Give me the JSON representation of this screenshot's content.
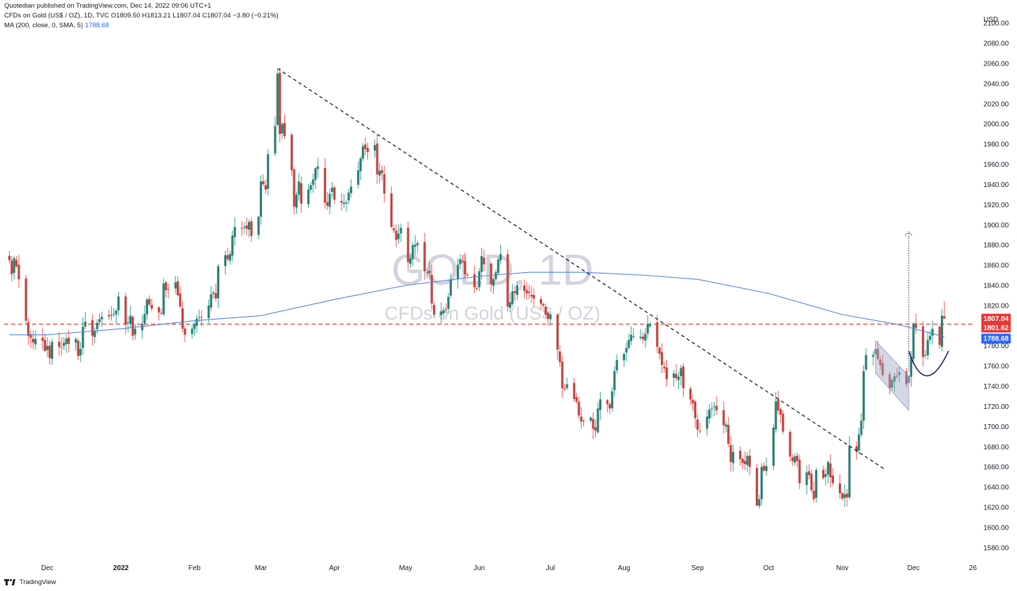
{
  "header": {
    "line1": "Quotedian published on TradingView.com, Dec 14, 2022 09:06 UTC+1",
    "line2": "CFDs on Gold (US$ / OZ), 1D, TVC  O1809.50  H1813.21  L1807.04  C1807.04  −3.80 (−0.21%)",
    "line3_label": "MA (200, close, 0, SMA, 5)",
    "line3_value": "1788.68"
  },
  "footer": {
    "brand": "TradingView"
  },
  "watermark": {
    "symbol": "GOLD, 1D",
    "description": "CFDs on Gold (US$ / OZ)"
  },
  "colors": {
    "up": "#26a69a",
    "up_body": "#1e6f65",
    "down": "#ef5350",
    "down_body": "#b43c3a",
    "candle_up": "#2d7f74",
    "candle_down": "#c0433f",
    "wick": "#4d4d4d",
    "ma": "#4f82e0",
    "price_line": "#e53935",
    "trend": "#131722",
    "channel": "#9fa6c7"
  },
  "chart_data": {
    "type": "candlestick",
    "title": "CFDs on Gold (US$ / OZ), 1D",
    "currency": "USD",
    "ylim": [
      1573,
      2116
    ],
    "y_ticks": [
      1580,
      1600,
      1620,
      1640,
      1660,
      1680,
      1700,
      1720,
      1740,
      1760,
      1780,
      1800,
      1820,
      1840,
      1860,
      1880,
      1900,
      1920,
      1940,
      1960,
      1980,
      2000,
      2020,
      2040,
      2060,
      2080,
      2100
    ],
    "x_ticks": [
      {
        "label": "Dec",
        "date": "2021-12-01"
      },
      {
        "label": "2022",
        "date": "2022-01-01"
      },
      {
        "label": "Feb",
        "date": "2022-02-01"
      },
      {
        "label": "Mar",
        "date": "2022-03-01"
      },
      {
        "label": "Apr",
        "date": "2022-04-01"
      },
      {
        "label": "May",
        "date": "2022-05-01"
      },
      {
        "label": "Jun",
        "date": "2022-06-01"
      },
      {
        "label": "Jul",
        "date": "2022-07-01"
      },
      {
        "label": "Aug",
        "date": "2022-08-01"
      },
      {
        "label": "Sep",
        "date": "2022-09-01"
      },
      {
        "label": "Oct",
        "date": "2022-10-01"
      },
      {
        "label": "Nov",
        "date": "2022-11-01"
      },
      {
        "label": "Dec",
        "date": "2022-12-01"
      },
      {
        "label": "26",
        "date": "2022-12-26"
      }
    ],
    "close_path": [
      [
        "2021-11-15",
        1865
      ],
      [
        "2021-11-16",
        1851
      ],
      [
        "2021-11-17",
        1867
      ],
      [
        "2021-11-18",
        1859
      ],
      [
        "2021-11-19",
        1846
      ],
      [
        "2021-11-22",
        1805
      ],
      [
        "2021-11-23",
        1790
      ],
      [
        "2021-11-24",
        1788
      ],
      [
        "2021-11-26",
        1787
      ],
      [
        "2021-11-29",
        1785
      ],
      [
        "2021-11-30",
        1775
      ],
      [
        "2021-12-01",
        1780
      ],
      [
        "2021-12-02",
        1768
      ],
      [
        "2021-12-03",
        1784
      ],
      [
        "2021-12-06",
        1779
      ],
      [
        "2021-12-08",
        1783
      ],
      [
        "2021-12-10",
        1782
      ],
      [
        "2021-12-13",
        1787
      ],
      [
        "2021-12-14",
        1770
      ],
      [
        "2021-12-15",
        1777
      ],
      [
        "2021-12-16",
        1799
      ],
      [
        "2021-12-17",
        1804
      ],
      [
        "2021-12-20",
        1790
      ],
      [
        "2021-12-22",
        1803
      ],
      [
        "2021-12-24",
        1809
      ],
      [
        "2021-12-28",
        1810
      ],
      [
        "2021-12-30",
        1815
      ],
      [
        "2021-12-31",
        1829
      ],
      [
        "2022-01-03",
        1801
      ],
      [
        "2022-01-05",
        1810
      ],
      [
        "2022-01-06",
        1790
      ],
      [
        "2022-01-07",
        1797
      ],
      [
        "2022-01-10",
        1802
      ],
      [
        "2022-01-12",
        1826
      ],
      [
        "2022-01-14",
        1817
      ],
      [
        "2022-01-18",
        1812
      ],
      [
        "2022-01-19",
        1842
      ],
      [
        "2022-01-21",
        1836
      ],
      [
        "2022-01-24",
        1843
      ],
      [
        "2022-01-26",
        1819
      ],
      [
        "2022-01-27",
        1797
      ],
      [
        "2022-01-28",
        1791
      ],
      [
        "2022-01-31",
        1797
      ],
      [
        "2022-02-02",
        1807
      ],
      [
        "2022-02-04",
        1808
      ],
      [
        "2022-02-07",
        1820
      ],
      [
        "2022-02-09",
        1833
      ],
      [
        "2022-02-10",
        1827
      ],
      [
        "2022-02-11",
        1859
      ],
      [
        "2022-02-14",
        1870
      ],
      [
        "2022-02-16",
        1871
      ],
      [
        "2022-02-18",
        1898
      ],
      [
        "2022-02-22",
        1898
      ],
      [
        "2022-02-24",
        1903
      ],
      [
        "2022-02-25",
        1889
      ],
      [
        "2022-02-28",
        1908
      ],
      [
        "2022-03-01",
        1943
      ],
      [
        "2022-03-03",
        1935
      ],
      [
        "2022-03-04",
        1970
      ],
      [
        "2022-03-07",
        1998
      ],
      [
        "2022-03-08",
        2050
      ],
      [
        "2022-03-09",
        1990
      ],
      [
        "2022-03-10",
        2000
      ],
      [
        "2022-03-11",
        1988
      ],
      [
        "2022-03-14",
        1954
      ],
      [
        "2022-03-15",
        1918
      ],
      [
        "2022-03-17",
        1943
      ],
      [
        "2022-03-18",
        1921
      ],
      [
        "2022-03-21",
        1935
      ],
      [
        "2022-03-23",
        1945
      ],
      [
        "2022-03-25",
        1958
      ],
      [
        "2022-03-28",
        1922
      ],
      [
        "2022-03-29",
        1919
      ],
      [
        "2022-03-31",
        1937
      ],
      [
        "2022-04-01",
        1925
      ],
      [
        "2022-04-05",
        1922
      ],
      [
        "2022-04-07",
        1932
      ],
      [
        "2022-04-11",
        1954
      ],
      [
        "2022-04-12",
        1966
      ],
      [
        "2022-04-13",
        1978
      ],
      [
        "2022-04-14",
        1975
      ],
      [
        "2022-04-18",
        1979
      ],
      [
        "2022-04-19",
        1950
      ],
      [
        "2022-04-21",
        1951
      ],
      [
        "2022-04-22",
        1931
      ],
      [
        "2022-04-25",
        1898
      ],
      [
        "2022-04-27",
        1885
      ],
      [
        "2022-04-29",
        1897
      ],
      [
        "2022-05-02",
        1863
      ],
      [
        "2022-05-04",
        1880
      ],
      [
        "2022-05-06",
        1882
      ],
      [
        "2022-05-09",
        1854
      ],
      [
        "2022-05-11",
        1852
      ],
      [
        "2022-05-12",
        1822
      ],
      [
        "2022-05-13",
        1811
      ],
      [
        "2022-05-16",
        1814
      ],
      [
        "2022-05-18",
        1816
      ],
      [
        "2022-05-20",
        1846
      ],
      [
        "2022-05-24",
        1866
      ],
      [
        "2022-05-26",
        1851
      ],
      [
        "2022-05-31",
        1837
      ],
      [
        "2022-06-02",
        1869
      ],
      [
        "2022-06-06",
        1841
      ],
      [
        "2022-06-08",
        1853
      ],
      [
        "2022-06-10",
        1871
      ],
      [
        "2022-06-13",
        1819
      ],
      [
        "2022-06-15",
        1834
      ],
      [
        "2022-06-17",
        1840
      ],
      [
        "2022-06-21",
        1832
      ],
      [
        "2022-06-24",
        1827
      ],
      [
        "2022-06-28",
        1820
      ],
      [
        "2022-06-30",
        1807
      ],
      [
        "2022-07-01",
        1811
      ],
      [
        "2022-07-05",
        1764
      ],
      [
        "2022-07-06",
        1738
      ],
      [
        "2022-07-08",
        1742
      ],
      [
        "2022-07-12",
        1725
      ],
      [
        "2022-07-14",
        1705
      ],
      [
        "2022-07-18",
        1709
      ],
      [
        "2022-07-20",
        1696
      ],
      [
        "2022-07-21",
        1718
      ],
      [
        "2022-07-22",
        1727
      ],
      [
        "2022-07-26",
        1718
      ],
      [
        "2022-07-27",
        1735
      ],
      [
        "2022-07-28",
        1755
      ],
      [
        "2022-07-29",
        1766
      ],
      [
        "2022-08-01",
        1772
      ],
      [
        "2022-08-04",
        1791
      ],
      [
        "2022-08-08",
        1789
      ],
      [
        "2022-08-10",
        1792
      ],
      [
        "2022-08-12",
        1802
      ],
      [
        "2022-08-15",
        1779
      ],
      [
        "2022-08-17",
        1761
      ],
      [
        "2022-08-19",
        1747
      ],
      [
        "2022-08-23",
        1748
      ],
      [
        "2022-08-25",
        1758
      ],
      [
        "2022-08-26",
        1738
      ],
      [
        "2022-08-30",
        1723
      ],
      [
        "2022-09-01",
        1697
      ],
      [
        "2022-09-05",
        1710
      ],
      [
        "2022-09-07",
        1718
      ],
      [
        "2022-09-09",
        1716
      ],
      [
        "2022-09-13",
        1702
      ],
      [
        "2022-09-15",
        1665
      ],
      [
        "2022-09-16",
        1675
      ],
      [
        "2022-09-20",
        1664
      ],
      [
        "2022-09-22",
        1671
      ],
      [
        "2022-09-26",
        1622
      ],
      [
        "2022-09-27",
        1628
      ],
      [
        "2022-09-28",
        1660
      ],
      [
        "2022-09-30",
        1661
      ],
      [
        "2022-10-03",
        1699
      ],
      [
        "2022-10-04",
        1725
      ],
      [
        "2022-10-05",
        1716
      ],
      [
        "2022-10-06",
        1712
      ],
      [
        "2022-10-07",
        1695
      ],
      [
        "2022-10-11",
        1666
      ],
      [
        "2022-10-13",
        1666
      ],
      [
        "2022-10-14",
        1644
      ],
      [
        "2022-10-18",
        1652
      ],
      [
        "2022-10-20",
        1628
      ],
      [
        "2022-10-21",
        1657
      ],
      [
        "2022-10-24",
        1649
      ],
      [
        "2022-10-26",
        1665
      ],
      [
        "2022-10-28",
        1644
      ],
      [
        "2022-10-31",
        1634
      ],
      [
        "2022-11-02",
        1633
      ],
      [
        "2022-11-03",
        1630
      ],
      [
        "2022-11-04",
        1681
      ],
      [
        "2022-11-07",
        1675
      ],
      [
        "2022-11-09",
        1706
      ],
      [
        "2022-11-10",
        1755
      ],
      [
        "2022-11-11",
        1771
      ],
      [
        "2022-11-14",
        1771
      ],
      [
        "2022-11-15",
        1777
      ],
      [
        "2022-11-17",
        1761
      ],
      [
        "2022-11-18",
        1751
      ],
      [
        "2022-11-21",
        1738
      ],
      [
        "2022-11-23",
        1750
      ],
      [
        "2022-11-25",
        1754
      ],
      [
        "2022-11-28",
        1742
      ],
      [
        "2022-11-29",
        1750
      ],
      [
        "2022-11-30",
        1769
      ],
      [
        "2022-12-01",
        1802
      ],
      [
        "2022-12-02",
        1798
      ],
      [
        "2022-12-05",
        1769
      ],
      [
        "2022-12-06",
        1771
      ],
      [
        "2022-12-07",
        1786
      ],
      [
        "2022-12-08",
        1790
      ],
      [
        "2022-12-09",
        1797
      ],
      [
        "2022-12-12",
        1781
      ],
      [
        "2022-12-13",
        1810
      ],
      [
        "2022-12-14",
        1807
      ]
    ],
    "ma200_path": [
      [
        "2021-11-15",
        1791
      ],
      [
        "2021-12-01",
        1791
      ],
      [
        "2022-01-01",
        1797
      ],
      [
        "2022-02-01",
        1805
      ],
      [
        "2022-03-01",
        1810
      ],
      [
        "2022-04-01",
        1826
      ],
      [
        "2022-05-01",
        1840
      ],
      [
        "2022-06-01",
        1849
      ],
      [
        "2022-06-22",
        1853
      ],
      [
        "2022-07-15",
        1853
      ],
      [
        "2022-08-10",
        1850
      ],
      [
        "2022-09-01",
        1846
      ],
      [
        "2022-10-01",
        1832
      ],
      [
        "2022-11-01",
        1811
      ],
      [
        "2022-11-25",
        1801
      ],
      [
        "2022-12-14",
        1789
      ]
    ],
    "last_price": 1807.04,
    "prev_price": 1801.62,
    "ma_value": 1788.68,
    "price_labels": [
      "1807.04",
      "1801.62",
      "1788.68"
    ],
    "horizontal_line": 1801.62,
    "downtrend_line": [
      [
        "2022-03-08",
        2055
      ],
      [
        "2022-11-09",
        1673
      ]
    ],
    "bull_flag_channel": [
      [
        "2022-11-15",
        1785
      ],
      [
        "2022-11-29",
        1750
      ],
      [
        "2022-11-29",
        1716
      ],
      [
        "2022-11-15",
        1753
      ]
    ],
    "target_arrow": {
      "date": "2022-11-29",
      "from": 1755,
      "to": 1893
    },
    "rounding_bottom": [
      [
        "2022-11-29",
        1775
      ],
      [
        "2022-12-06",
        1752
      ],
      [
        "2022-12-14",
        1775
      ]
    ]
  }
}
